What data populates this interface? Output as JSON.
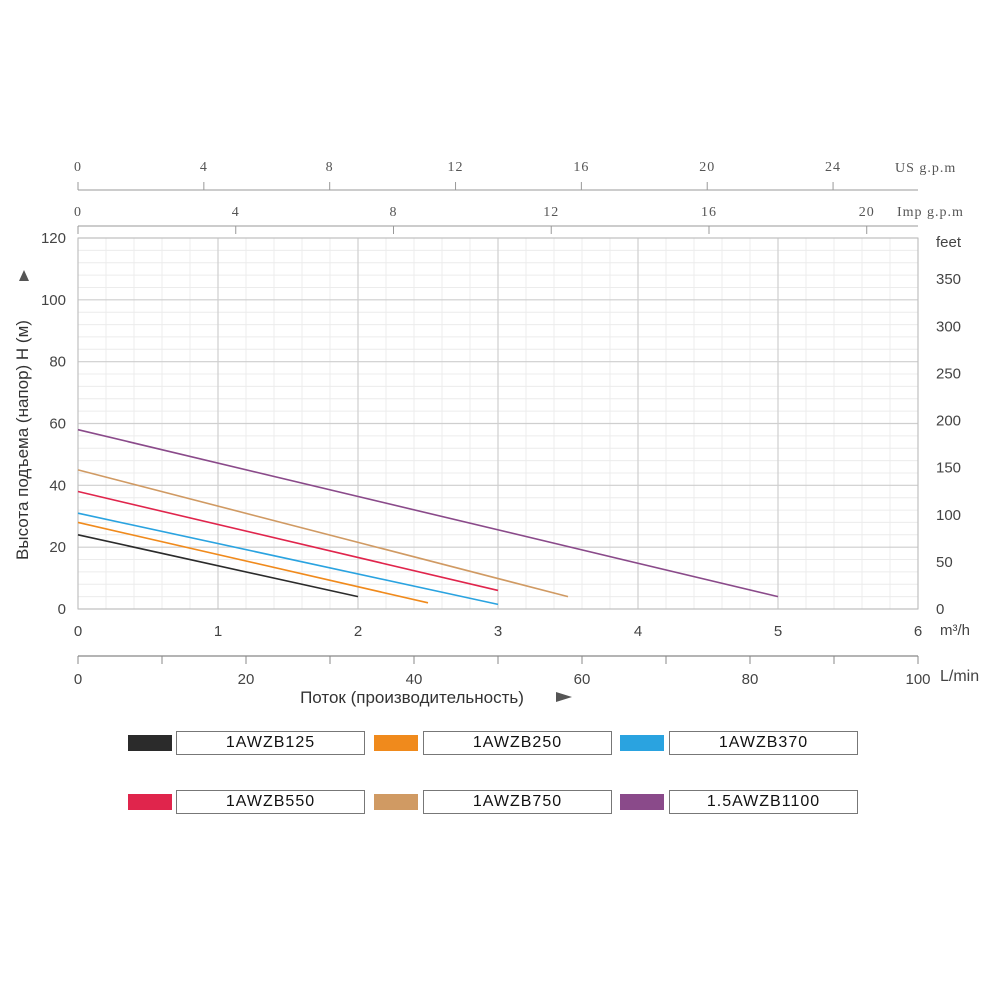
{
  "chart_data": {
    "type": "line",
    "y_axis": {
      "label": "Высота подъема (напор) H (м)",
      "ticks": [
        "0",
        "20",
        "40",
        "60",
        "80",
        "100",
        "120"
      ],
      "ylim": [
        0,
        120
      ]
    },
    "y_axis_right": {
      "unit": "feet",
      "ticks": [
        "0",
        "50",
        "100",
        "150",
        "200",
        "250",
        "300",
        "350"
      ]
    },
    "x_axis": {
      "unit": "m³/h",
      "ticks": [
        "0",
        "1",
        "2",
        "3",
        "4",
        "5",
        "6"
      ],
      "xlim": [
        0,
        6
      ]
    },
    "x_axis_lmin": {
      "unit": "L/min",
      "label": "Поток (производительность)",
      "ticks": [
        "0",
        "20",
        "40",
        "60",
        "80",
        "100"
      ]
    },
    "x_axis_us": {
      "unit": "US g.p.m",
      "ticks": [
        "0",
        "4",
        "8",
        "12",
        "16",
        "20",
        "24"
      ]
    },
    "x_axis_imp": {
      "unit": "Imp g.p.m",
      "ticks": [
        "0",
        "4",
        "8",
        "12",
        "16",
        "20"
      ]
    },
    "series": [
      {
        "name": "1AWZB125",
        "color": "#2b2b2b",
        "x": [
          0,
          2.0
        ],
        "y": [
          24,
          4
        ]
      },
      {
        "name": "1AWZB250",
        "color": "#f08a1c",
        "x": [
          0,
          2.5
        ],
        "y": [
          28,
          2
        ]
      },
      {
        "name": "1AWZB370",
        "color": "#2aa3e0",
        "x": [
          0,
          3.0
        ],
        "y": [
          31,
          1.5
        ]
      },
      {
        "name": "1AWZB550",
        "color": "#e0254c",
        "x": [
          0,
          3.0
        ],
        "y": [
          38,
          6
        ]
      },
      {
        "name": "1AWZB750",
        "color": "#d09a63",
        "x": [
          0,
          3.5
        ],
        "y": [
          45,
          4
        ]
      },
      {
        "name": "1.5AWZB1100",
        "color": "#8a4a8a",
        "x": [
          0,
          5.0
        ],
        "y": [
          58,
          4
        ]
      }
    ],
    "grid": true,
    "legend": "bottom"
  },
  "legend": [
    {
      "label": "1AWZB125",
      "color": "#2b2b2b"
    },
    {
      "label": "1AWZB250",
      "color": "#f08a1c"
    },
    {
      "label": "1AWZB370",
      "color": "#2aa3e0"
    },
    {
      "label": "1AWZB550",
      "color": "#e0254c"
    },
    {
      "label": "1AWZB750",
      "color": "#d09a63"
    },
    {
      "label": "1.5AWZB1100",
      "color": "#8a4a8a"
    }
  ]
}
